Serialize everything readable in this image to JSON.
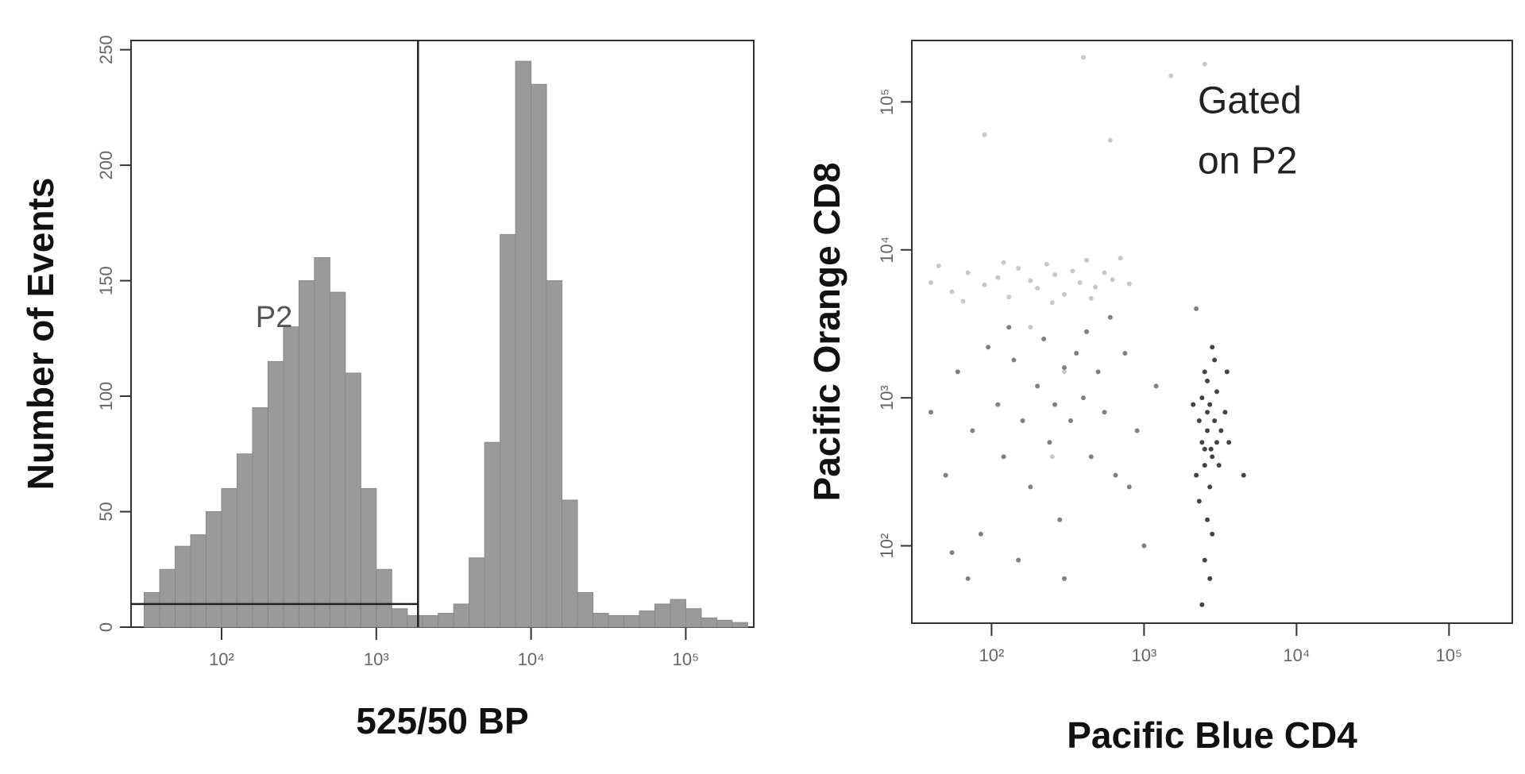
{
  "chart_data": [
    {
      "type": "histogram",
      "xlabel": "525/50 BP",
      "ylabel": "Number of Events",
      "xscale": "log",
      "xlim": [
        26,
        275000
      ],
      "ylim": [
        0,
        254
      ],
      "xticks": [
        {
          "value": 100,
          "label": "10²"
        },
        {
          "value": 1000,
          "label": "10³"
        },
        {
          "value": 10000,
          "label": "10⁴"
        },
        {
          "value": 100000,
          "label": "10⁵"
        }
      ],
      "yticks": [
        0,
        50,
        100,
        150,
        200,
        250
      ],
      "color": "#9a9a9a",
      "bins": [
        31.6,
        39.8,
        50.1,
        63.1,
        79.4,
        100,
        125.9,
        158.5,
        199.5,
        251.2,
        316.2,
        398.1,
        501.2,
        631,
        794.3,
        1000,
        1259,
        1585,
        1995,
        2512,
        3162,
        3981,
        5012,
        6310,
        7943,
        10000,
        12589,
        15849,
        19953,
        25119,
        31623,
        39811,
        50119,
        63096,
        79433,
        100000,
        125893,
        158489,
        199526,
        251189
      ],
      "values": [
        15,
        25,
        35,
        40,
        50,
        60,
        75,
        95,
        115,
        130,
        150,
        160,
        145,
        110,
        60,
        25,
        8,
        5,
        5,
        6,
        10,
        30,
        80,
        170,
        245,
        235,
        150,
        55,
        15,
        6,
        5,
        5,
        7,
        10,
        12,
        8,
        4,
        3,
        2
      ],
      "gate": {
        "label": "P2",
        "x": 1860,
        "y": 10
      }
    },
    {
      "type": "scatter",
      "xlabel": "Pacific Blue CD4",
      "ylabel": "Pacific Orange CD8",
      "annotation": [
        "Gated",
        "on P2"
      ],
      "xscale": "log",
      "yscale": "log",
      "xlim": [
        30,
        260000
      ],
      "ylim": [
        30,
        260000
      ],
      "xticks": [
        {
          "value": 100,
          "label": "10²"
        },
        {
          "value": 1000,
          "label": "10³"
        },
        {
          "value": 10000,
          "label": "10⁴"
        },
        {
          "value": 100000,
          "label": "10⁵"
        }
      ],
      "yticks": [
        {
          "value": 100,
          "label": "10²"
        },
        {
          "value": 1000,
          "label": "10³"
        },
        {
          "value": 10000,
          "label": "10⁴"
        },
        {
          "value": 100000,
          "label": "10⁵"
        }
      ],
      "series": [
        {
          "color": "#c8c8c8",
          "x": [
            40,
            55,
            70,
            90,
            110,
            130,
            150,
            180,
            200,
            230,
            260,
            300,
            340,
            380,
            420,
            480,
            550,
            620,
            700,
            800,
            65,
            120,
            250,
            450,
            45,
            1500,
            400,
            600,
            90,
            2500,
            180,
            300,
            250
          ],
          "values": [
            6000,
            5200,
            7000,
            5800,
            6500,
            4800,
            7500,
            6200,
            5500,
            8000,
            6800,
            5000,
            7200,
            6000,
            8500,
            5600,
            7000,
            6300,
            8800,
            5900,
            4500,
            8200,
            4400,
            4700,
            7800,
            150000,
            200000,
            55000,
            60000,
            180000,
            3000,
            1500,
            400
          ]
        },
        {
          "color": "#808080",
          "x": [
            40,
            50,
            60,
            75,
            85,
            95,
            110,
            120,
            140,
            160,
            180,
            200,
            220,
            240,
            260,
            280,
            300,
            330,
            360,
            400,
            450,
            500,
            550,
            650,
            750,
            900,
            1200,
            55,
            70,
            150,
            300,
            1000,
            130,
            420,
            600,
            2200,
            800
          ],
          "values": [
            800,
            300,
            1500,
            600,
            120,
            2200,
            900,
            400,
            1800,
            700,
            250,
            1200,
            2500,
            500,
            900,
            150,
            1600,
            700,
            2000,
            1000,
            400,
            1500,
            800,
            300,
            2000,
            600,
            1200,
            90,
            60,
            80,
            60,
            100,
            3000,
            2800,
            3500,
            4000,
            250
          ]
        },
        {
          "color": "#444444",
          "x": [
            2200,
            2400,
            2600,
            2800,
            3000,
            2500,
            2700,
            2300,
            3200,
            2900,
            2600,
            2400,
            2800,
            3100,
            2500,
            2700,
            2300,
            3000,
            2600,
            2800,
            2500,
            2700,
            2400,
            3400,
            2100,
            3600,
            2600,
            2900,
            2500,
            2750,
            4500,
            3500
          ],
          "values": [
            300,
            500,
            800,
            400,
            1100,
            1500,
            250,
            700,
            600,
            1800,
            150,
            1000,
            2200,
            350,
            450,
            900,
            200,
            500,
            1300,
            120,
            80,
            60,
            40,
            800,
            900,
            500,
            600,
            700,
            350,
            450,
            300,
            1500
          ]
        }
      ]
    }
  ]
}
